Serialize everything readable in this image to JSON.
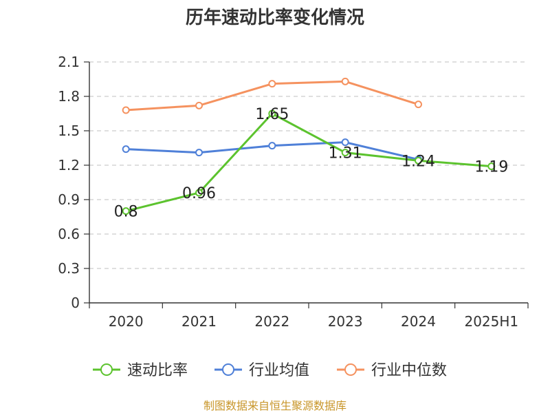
{
  "chart_data": {
    "type": "line",
    "title": "历年速动比率变化情况",
    "categories": [
      "2020",
      "2021",
      "2022",
      "2023",
      "2024",
      "2025H1"
    ],
    "ylim": [
      0,
      2.1
    ],
    "yticks": [
      "0",
      "0.3",
      "0.6",
      "0.9",
      "1.2",
      "1.5",
      "1.8",
      "2.1"
    ],
    "grid": true,
    "legend_position": "bottom",
    "series": [
      {
        "name": "速动比率",
        "color": "#5cc32e",
        "values": [
          0.8,
          0.96,
          1.65,
          1.31,
          1.24,
          1.19
        ],
        "labels": [
          "0.8",
          "0.96",
          "1.65",
          "1.31",
          "1.24",
          "1.19"
        ]
      },
      {
        "name": "行业均值",
        "color": "#4f80d8",
        "values": [
          1.34,
          1.31,
          1.37,
          1.4,
          1.25,
          null
        ]
      },
      {
        "name": "行业中位数",
        "color": "#f5925f",
        "values": [
          1.68,
          1.72,
          1.91,
          1.93,
          1.73,
          null
        ]
      }
    ],
    "source": "制图数据来自恒生聚源数据库"
  }
}
